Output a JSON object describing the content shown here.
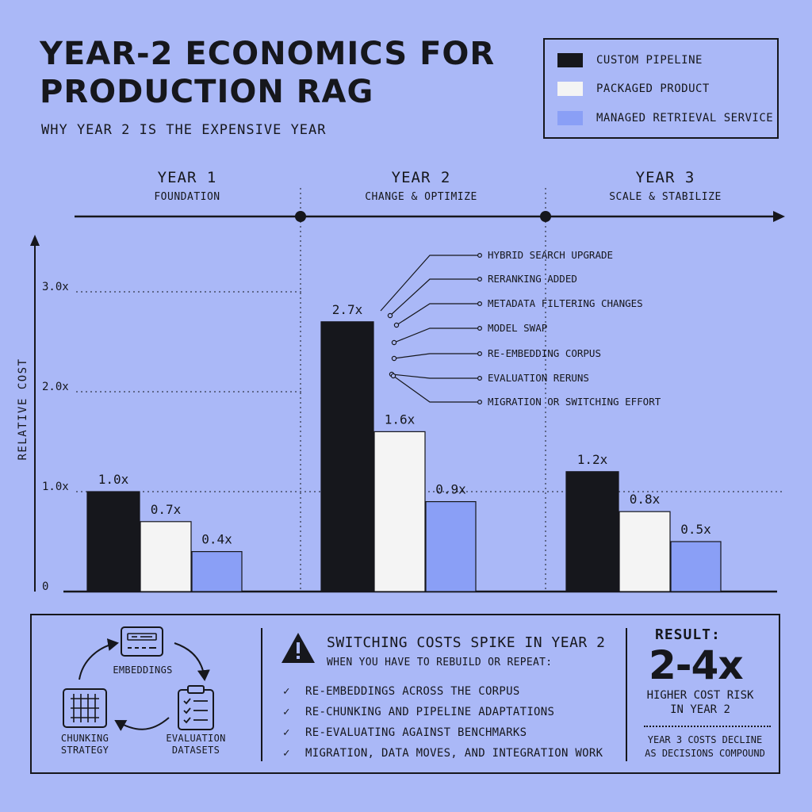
{
  "header": {
    "title": "YEAR-2 ECONOMICS FOR PRODUCTION RAG",
    "subtitle": "WHY YEAR 2 IS THE EXPENSIVE YEAR"
  },
  "legend": [
    {
      "label": "CUSTOM PIPELINE",
      "color": "#16171c"
    },
    {
      "label": "PACKAGED PRODUCT",
      "color": "#f4f4f4"
    },
    {
      "label": "MANAGED RETRIEVAL SERVICE",
      "color": "#8a9ff6"
    }
  ],
  "timeline": [
    {
      "title": "YEAR 1",
      "subtitle": "FOUNDATION"
    },
    {
      "title": "YEAR 2",
      "subtitle": "CHANGE & OPTIMIZE"
    },
    {
      "title": "YEAR 3",
      "subtitle": "SCALE & STABILIZE"
    }
  ],
  "chart_data": {
    "type": "bar",
    "title": "",
    "ylabel": "RELATIVE COST",
    "xlabel": "",
    "categories": [
      "YEAR 1",
      "YEAR 2",
      "YEAR 3"
    ],
    "series": [
      {
        "name": "CUSTOM PIPELINE",
        "values": [
          1.0,
          2.7,
          1.2
        ],
        "labels": [
          "1.0x",
          "2.7x",
          "1.2x"
        ],
        "color": "#16171c"
      },
      {
        "name": "PACKAGED PRODUCT",
        "values": [
          0.7,
          1.6,
          0.8
        ],
        "labels": [
          "0.7x",
          "1.6x",
          "0.8x"
        ],
        "color": "#f4f4f4"
      },
      {
        "name": "MANAGED RETRIEVAL SERVICE",
        "values": [
          0.4,
          0.9,
          0.5
        ],
        "labels": [
          "0.4x",
          "0.9x",
          "0.5x"
        ],
        "color": "#8a9ff6"
      }
    ],
    "yticks": [
      {
        "value": 0,
        "label": "0"
      },
      {
        "value": 1.0,
        "label": "1.0x"
      },
      {
        "value": 2.0,
        "label": "2.0x"
      },
      {
        "value": 3.0,
        "label": "3.0x"
      }
    ],
    "ylim": [
      0,
      3.1
    ],
    "grid": "dotted",
    "legend_position": "top-right",
    "annotations": [
      "HYBRID SEARCH UPGRADE",
      "RERANKING ADDED",
      "METADATA FILTERING CHANGES",
      "MODEL SWAP",
      "RE-EMBEDDING CORPUS",
      "EVALUATION RERUNS",
      "MIGRATION OR SWITCHING EFFORT"
    ]
  },
  "cycle": {
    "embeddings": "EMBEDDINGS",
    "evaluation": "EVALUATION DATASETS",
    "chunking": "CHUNKING STRATEGY"
  },
  "switching": {
    "title": "SWITCHING COSTS SPIKE IN YEAR 2",
    "subtitle": "WHEN YOU HAVE TO REBUILD OR REPEAT:",
    "items": [
      "RE-EMBEDDINGS ACROSS THE CORPUS",
      "RE-CHUNKING AND PIPELINE ADAPTATIONS",
      "RE-EVALUATING AGAINST BENCHMARKS",
      "MIGRATION, DATA MOVES, AND INTEGRATION WORK"
    ]
  },
  "result": {
    "label": "RESULT:",
    "value": "2-4x",
    "description": "HIGHER COST RISK IN YEAR 2",
    "note": "YEAR 3 COSTS DECLINE AS DECISIONS COMPOUND"
  },
  "icons": {
    "warning": "warning-icon",
    "embeddings": "embeddings-icon",
    "evaluation": "clipboard-checklist-icon",
    "chunking": "grid-icon",
    "check": "check-icon"
  }
}
